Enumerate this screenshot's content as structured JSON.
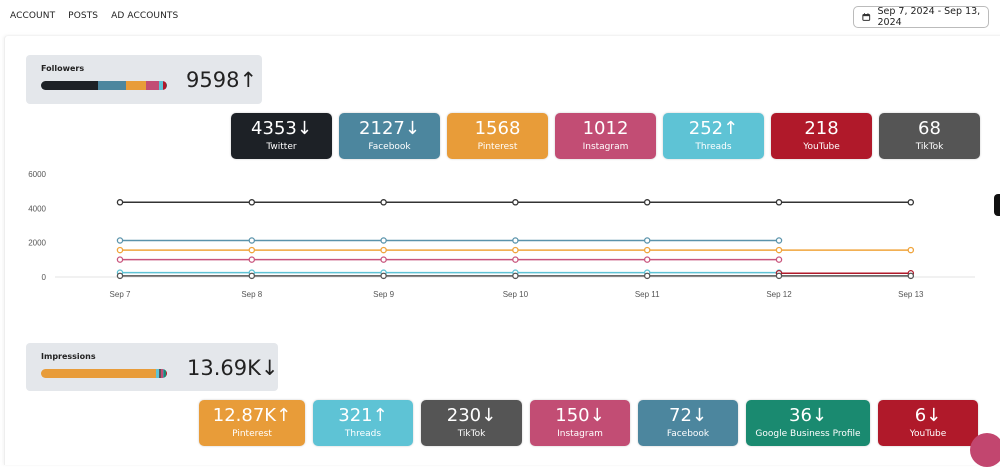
{
  "nav": {
    "items": [
      "ACCOUNT",
      "POSTS",
      "AD ACCOUNTS"
    ]
  },
  "date_range": {
    "label": "Sep 7, 2024 - Sep 13, 2024",
    "icon": "calendar-icon"
  },
  "followers": {
    "title": "Followers",
    "total": "9598",
    "trend": "↑",
    "cards": [
      {
        "value": "4353",
        "trend": "↓",
        "label": "Twitter",
        "color": "#1d2126"
      },
      {
        "value": "2127",
        "trend": "↓",
        "label": "Facebook",
        "color": "#4c869e"
      },
      {
        "value": "1568",
        "trend": "",
        "label": "Pinterest",
        "color": "#e89c39"
      },
      {
        "value": "1012",
        "trend": "",
        "label": "Instagram",
        "color": "#c24d74"
      },
      {
        "value": "252",
        "trend": "↑",
        "label": "Threads",
        "color": "#5ec3d5"
      },
      {
        "value": "218",
        "trend": "",
        "label": "YouTube",
        "color": "#b0192a"
      },
      {
        "value": "68",
        "trend": "",
        "label": "TikTok",
        "color": "#555555"
      }
    ]
  },
  "chart_data": {
    "type": "line",
    "x": [
      "Sep 7",
      "Sep 8",
      "Sep 9",
      "Sep 10",
      "Sep 11",
      "Sep 12",
      "Sep 13"
    ],
    "ylim": [
      0,
      6000
    ],
    "yticks": [
      "0",
      "2000",
      "4000",
      "6000"
    ],
    "grid": false,
    "series": [
      {
        "key": "Twitter",
        "color": "#333333",
        "values": [
          4353,
          4353,
          4353,
          4353,
          4353,
          4353,
          4353
        ]
      },
      {
        "key": "Facebook",
        "color": "#5a93ab",
        "values": [
          2127,
          2127,
          2127,
          2127,
          2127,
          2127,
          null
        ]
      },
      {
        "key": "Pinterest",
        "color": "#f0a43c",
        "values": [
          1568,
          1568,
          1568,
          1568,
          1568,
          1568,
          1568
        ]
      },
      {
        "key": "Instagram",
        "color": "#c9557d",
        "values": [
          1012,
          1012,
          1012,
          1012,
          1012,
          1012,
          null
        ]
      },
      {
        "key": "Threads",
        "color": "#5ec3d5",
        "values": [
          252,
          252,
          252,
          252,
          252,
          252,
          null
        ]
      },
      {
        "key": "YouTube",
        "color": "#b0192a",
        "values": [
          null,
          null,
          null,
          null,
          null,
          218,
          218
        ]
      },
      {
        "key": "TikTok",
        "color": "#555555",
        "values": [
          68,
          68,
          68,
          68,
          68,
          68,
          68
        ]
      }
    ]
  },
  "impressions": {
    "title": "Impressions",
    "total": "13.69K",
    "trend": "↓",
    "cards": [
      {
        "value": "12.87K",
        "trend": "↑",
        "label": "Pinterest",
        "color": "#e89c39"
      },
      {
        "value": "321",
        "trend": "↑",
        "label": "Threads",
        "color": "#5ec3d5"
      },
      {
        "value": "230",
        "trend": "↓",
        "label": "TikTok",
        "color": "#555555"
      },
      {
        "value": "150",
        "trend": "↓",
        "label": "Instagram",
        "color": "#c24d74"
      },
      {
        "value": "72",
        "trend": "↓",
        "label": "Facebook",
        "color": "#4c869e"
      },
      {
        "value": "36",
        "trend": "↓",
        "label": "Google Business Profile",
        "color": "#1a8a70"
      },
      {
        "value": "6",
        "trend": "↓",
        "label": "YouTube",
        "color": "#b0192a"
      }
    ]
  }
}
